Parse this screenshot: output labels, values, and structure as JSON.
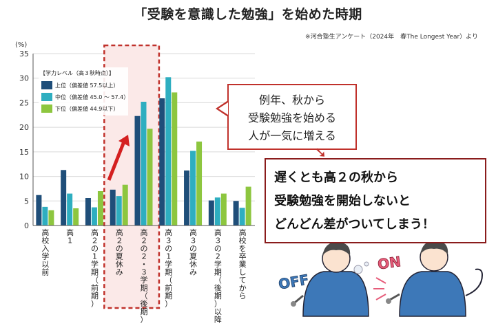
{
  "page": {
    "title": "「受験を意識した勉強」を始めた時期",
    "source": "※河合塾生アンケート（2024年　春The Longest Year）より",
    "unit": "(%)"
  },
  "colors": {
    "top": "#1f4e79",
    "middle": "#2eaec0",
    "lower": "#8dc63f",
    "highlight": "#c0312b"
  },
  "callout": {
    "lines": [
      "例年、秋から",
      "受験勉強を始める",
      "人が一気に増える"
    ]
  },
  "result": {
    "lines": [
      "遅くとも高２の秋から",
      "受験勉強を開始しないと",
      "どんどん差がついてしまう！"
    ]
  },
  "illustration": {
    "off_label": "OFF",
    "on_label": "ON"
  },
  "chart_data": {
    "type": "bar",
    "categories": [
      "高校入学以前",
      "高1",
      "高２の1学期（前期）",
      "高２の夏休み",
      "高２の２・３学期（後期）",
      "高３の1学期（前期）",
      "高３の夏休み",
      "高３の2学期（後期）以降",
      "高校を卒業してから"
    ],
    "series": [
      {
        "name": "上位（偏差値 57.5以上）",
        "values": [
          6.2,
          11.3,
          5.6,
          7.3,
          22.3,
          25.9,
          11.2,
          5.1,
          5.0
        ]
      },
      {
        "name": "中位（偏差値 45.0 ～ 57.4）",
        "values": [
          3.8,
          6.5,
          3.7,
          6.0,
          25.2,
          30.2,
          15.2,
          5.7,
          3.6
        ]
      },
      {
        "name": "下位（偏差値 44.9以下）",
        "values": [
          3.1,
          3.5,
          7.0,
          8.3,
          19.7,
          27.1,
          17.1,
          6.5,
          7.9
        ]
      }
    ],
    "legend_title": "【学力レベル（高３秋時点）】",
    "legend_position": "top-left",
    "ylim": [
      0,
      35
    ],
    "yticks": [
      0,
      5,
      10,
      15,
      20,
      25,
      30,
      35
    ],
    "highlight_categories": [
      3,
      4
    ],
    "grid": true
  }
}
